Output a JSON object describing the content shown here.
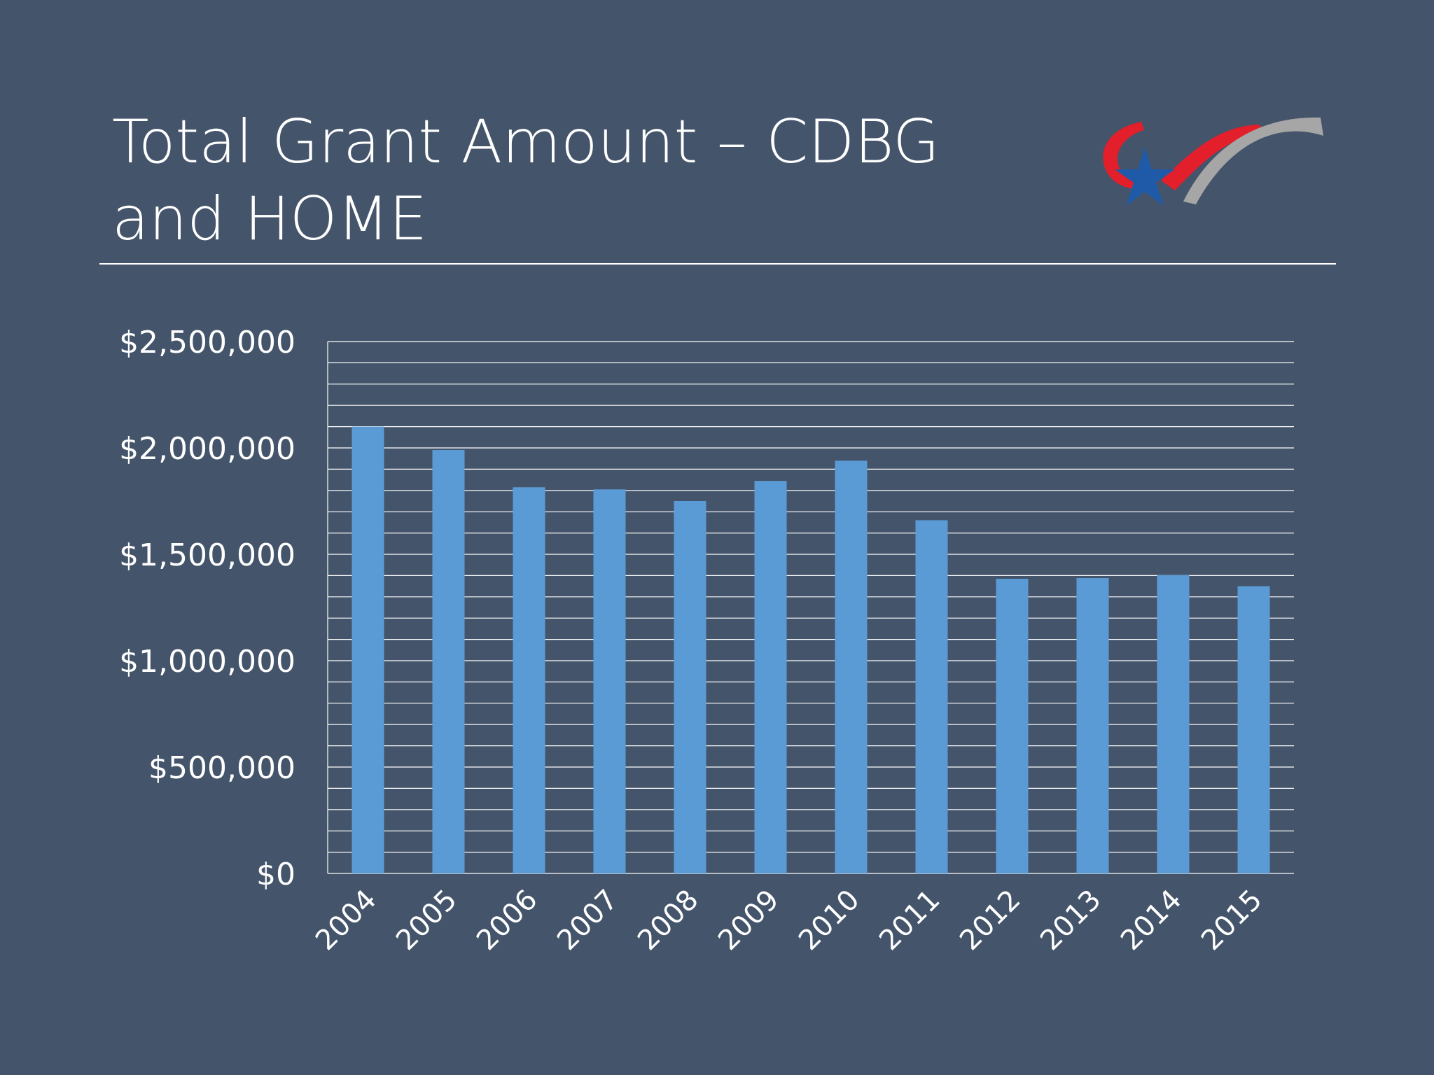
{
  "slide": {
    "title_line1": "Total Grant Amount – CDBG",
    "title_line2": "and HOME"
  },
  "colors": {
    "background": "#44546a",
    "bar": "#5b9bd5",
    "grid": "#ffffff",
    "logo_red": "#e31f2b",
    "logo_gray": "#a6a6a6",
    "logo_blue": "#1f5aa8"
  },
  "logo": {
    "icon": "star-ribbon-logo"
  },
  "chart_data": {
    "type": "bar",
    "categories": [
      "2004",
      "2005",
      "2006",
      "2007",
      "2008",
      "2009",
      "2010",
      "2011",
      "2012",
      "2013",
      "2014",
      "2015"
    ],
    "values": [
      2100000,
      1990000,
      1815000,
      1805000,
      1750000,
      1845000,
      1940000,
      1660000,
      1385000,
      1388000,
      1402000,
      1350000
    ],
    "yticks": [
      0,
      500000,
      1000000,
      1500000,
      2000000,
      2500000
    ],
    "ytick_labels": [
      "$0",
      "$500,000",
      "$1,000,000",
      "$1,500,000",
      "$2,000,000",
      "$2,500,000"
    ],
    "ylim": [
      0,
      2500000
    ],
    "minor_gridline_step": 100000,
    "grid": true,
    "legend": "none",
    "title": "",
    "xlabel": "",
    "ylabel": ""
  }
}
